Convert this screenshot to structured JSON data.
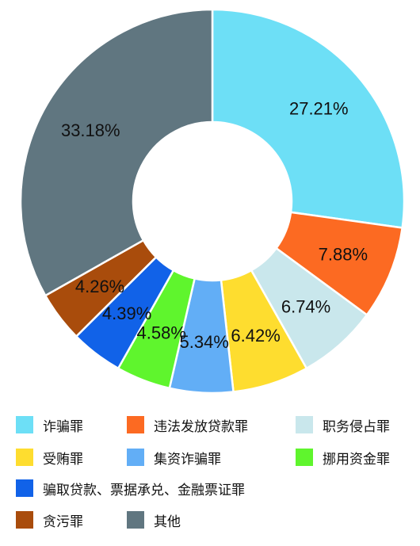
{
  "chart_data": {
    "type": "pie",
    "donut": true,
    "unit": "%",
    "slices": [
      {
        "name": "诈骗罪",
        "value": 27.21,
        "label": "27.21%",
        "color": "#6ddff6"
      },
      {
        "name": "违法发放贷款罪",
        "value": 7.88,
        "label": "7.88%",
        "color": "#fc6a22"
      },
      {
        "name": "职务侵占罪",
        "value": 6.74,
        "label": "6.74%",
        "color": "#c9e7ec"
      },
      {
        "name": "受贿罪",
        "value": 6.42,
        "label": "6.42%",
        "color": "#fedd2f"
      },
      {
        "name": "集资诈骗罪",
        "value": 5.34,
        "label": "5.34%",
        "color": "#62aef6"
      },
      {
        "name": "挪用资金罪",
        "value": 4.58,
        "label": "4.58%",
        "color": "#5ff52d"
      },
      {
        "name": "骗取贷款、票据承兑、金融票证罪",
        "value": 4.39,
        "label": "4.39%",
        "color": "#1162e8"
      },
      {
        "name": "贪污罪",
        "value": 4.26,
        "label": "4.26%",
        "color": "#a94c0c"
      },
      {
        "name": "其他",
        "value": 33.18,
        "label": "33.18%",
        "color": "#607680"
      }
    ],
    "legend_placement": "bottom"
  }
}
